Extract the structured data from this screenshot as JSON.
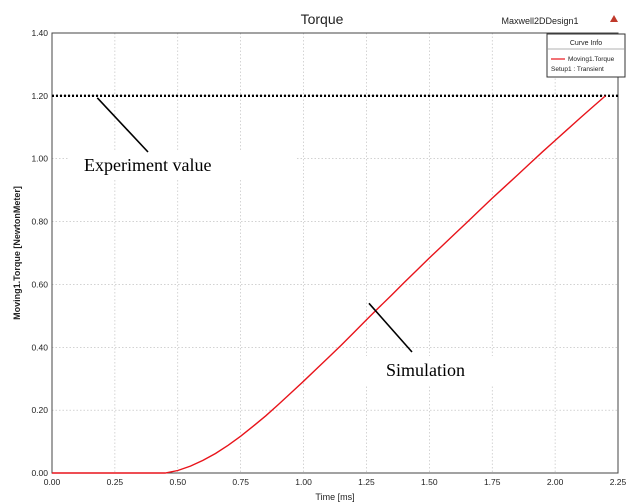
{
  "chart_data": {
    "type": "line",
    "title": "Torque",
    "design_label": "Maxwell2DDesign1",
    "xlabel": "Time [ms]",
    "ylabel": "Moving1.Torque [NewtonMeter]",
    "xlim": [
      0,
      2.25
    ],
    "ylim": [
      0,
      1.4
    ],
    "x_ticks": [
      "0.00",
      "0.25",
      "0.50",
      "0.75",
      "1.00",
      "1.25",
      "1.50",
      "1.75",
      "2.00",
      "2.25"
    ],
    "y_ticks": [
      "0.00",
      "0.20",
      "0.40",
      "0.60",
      "0.80",
      "1.00",
      "1.20",
      "1.40"
    ],
    "grid": true,
    "legend": {
      "title": "Curve Info",
      "entry": "Moving1.Torque",
      "setup": "Setup1 : Transient",
      "placement": "top-right"
    },
    "series": [
      {
        "name": "Moving1.Torque",
        "color": "#e8141b",
        "x": [
          0.0,
          0.18,
          0.3,
          0.45,
          0.5,
          0.55,
          0.6,
          0.65,
          0.7,
          0.75,
          0.8,
          0.85,
          0.9,
          0.95,
          1.0,
          1.05,
          1.1,
          1.15,
          1.2,
          1.25,
          1.3,
          1.35,
          1.4,
          1.45,
          1.5,
          1.55,
          1.6,
          1.65,
          1.7,
          1.75,
          1.8,
          1.85,
          1.9,
          1.95,
          2.0,
          2.05,
          2.1,
          2.15,
          2.2
        ],
        "y": [
          0.0,
          0.0,
          0.0,
          0.0,
          0.008,
          0.022,
          0.04,
          0.062,
          0.088,
          0.117,
          0.149,
          0.182,
          0.218,
          0.255,
          0.292,
          0.33,
          0.368,
          0.407,
          0.447,
          0.487,
          0.527,
          0.566,
          0.606,
          0.645,
          0.684,
          0.722,
          0.76,
          0.798,
          0.836,
          0.874,
          0.911,
          0.948,
          0.985,
          1.022,
          1.058,
          1.094,
          1.13,
          1.165,
          1.2
        ]
      }
    ],
    "reference_line": {
      "y": 1.2,
      "color": "#000000"
    },
    "annotations": [
      {
        "text": "Experiment value",
        "points_to": {
          "x": 0.18,
          "y": 1.2
        }
      },
      {
        "text": "Simulation",
        "points_to": {
          "x": 1.26,
          "y": 0.54
        }
      }
    ]
  }
}
